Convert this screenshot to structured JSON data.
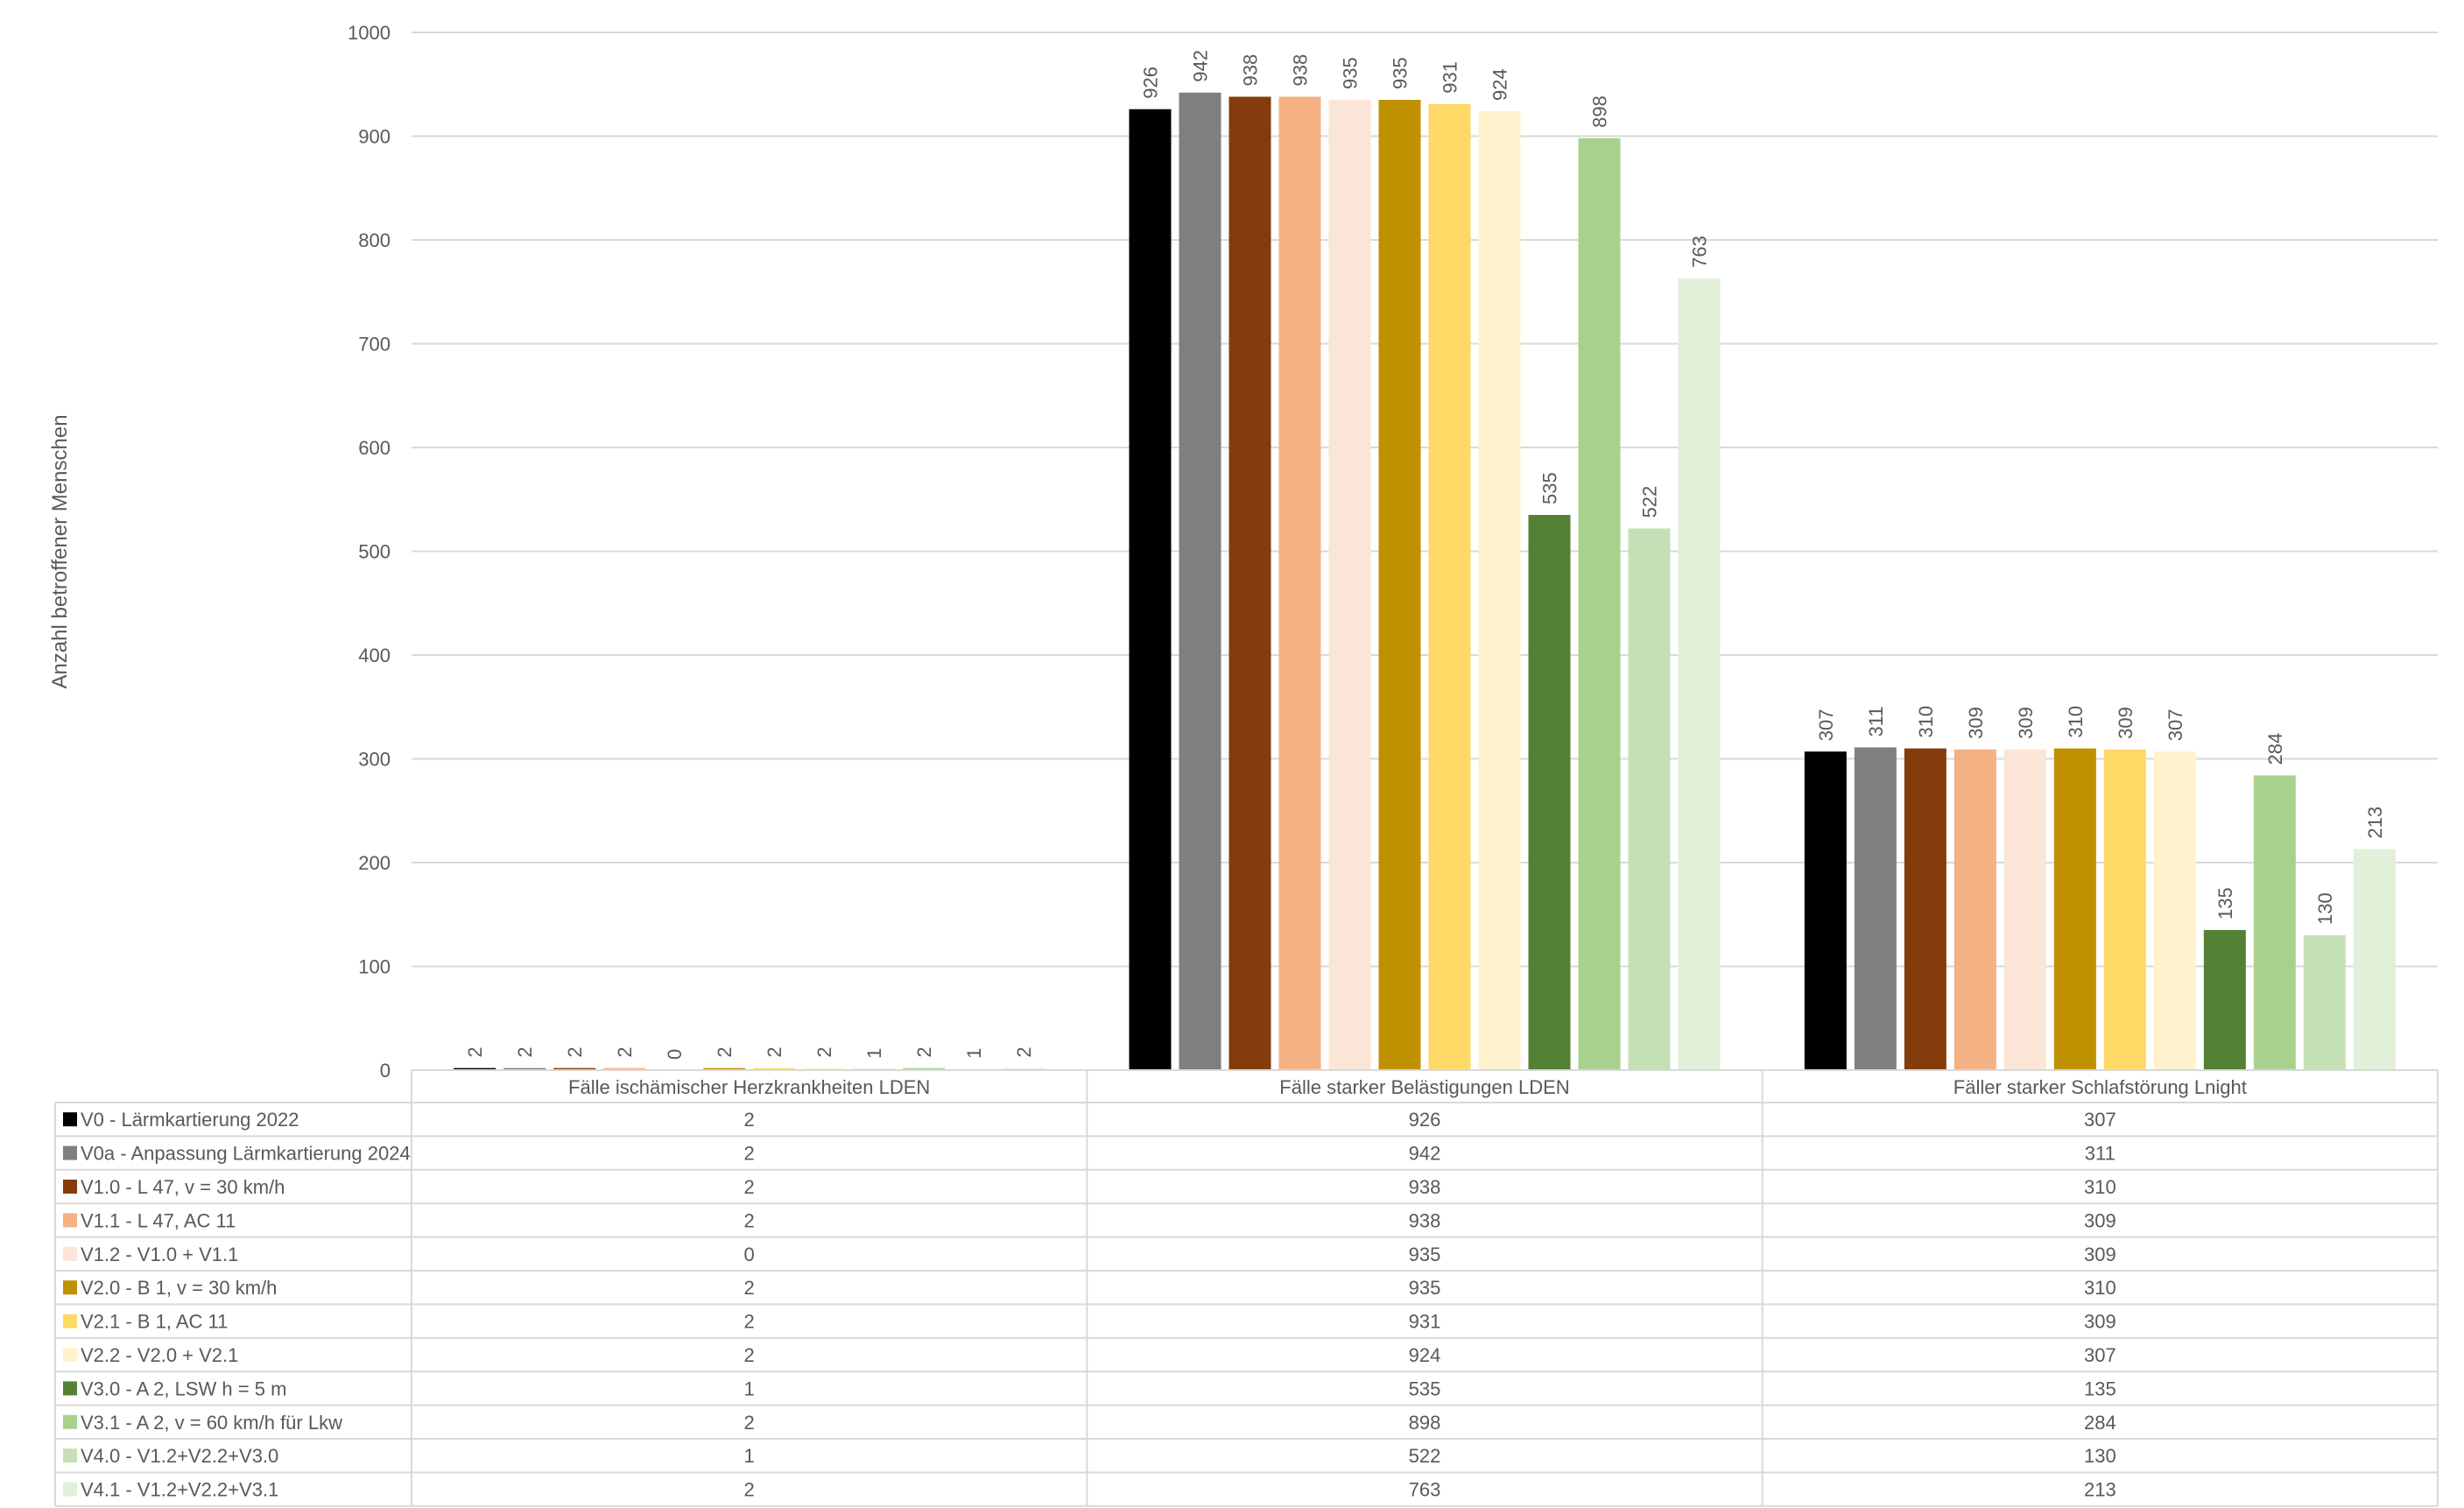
{
  "chart_data": {
    "type": "bar",
    "ylabel": "Anzahl betroffener Menschen",
    "ylim": [
      0,
      1000
    ],
    "yticks": [
      "0",
      "100",
      "200",
      "300",
      "400",
      "500",
      "600",
      "700",
      "800",
      "900",
      "1000"
    ],
    "grid": true,
    "legend": "data-table-below",
    "categories": [
      "Fälle ischämischer Herzkrankheiten LDEN",
      "Fälle starker Belästigungen LDEN",
      "Fäller starker Schlafstörung Lnight"
    ],
    "series": [
      {
        "name": "V0 - Lärmkartierung 2022",
        "color": "#000000",
        "values": [
          2,
          926,
          307
        ]
      },
      {
        "name": "V0a - Anpassung Lärmkartierung 2024",
        "color": "#7f7f7f",
        "values": [
          2,
          942,
          311
        ]
      },
      {
        "name": "V1.0 - L 47, v = 30 km/h",
        "color": "#843c0c",
        "values": [
          2,
          938,
          310
        ]
      },
      {
        "name": "V1.1 - L 47, AC 11",
        "color": "#f4b183",
        "values": [
          2,
          938,
          309
        ]
      },
      {
        "name": "V1.2 - V1.0 + V1.1",
        "color": "#fbe5d6",
        "values": [
          0,
          935,
          309
        ]
      },
      {
        "name": "V2.0 - B 1, v = 30 km/h",
        "color": "#bf9000",
        "values": [
          2,
          935,
          310
        ]
      },
      {
        "name": "V2.1 - B 1, AC 11",
        "color": "#ffd966",
        "values": [
          2,
          931,
          309
        ]
      },
      {
        "name": "V2.2 - V2.0 + V2.1",
        "color": "#fff2cc",
        "values": [
          2,
          924,
          307
        ]
      },
      {
        "name": "V3.0 - A 2, LSW h = 5 m",
        "color": "#548235",
        "values": [
          1,
          535,
          135
        ]
      },
      {
        "name": "V3.1 - A 2, v = 60 km/h für Lkw",
        "color": "#a9d18e",
        "values": [
          2,
          898,
          284
        ]
      },
      {
        "name": "V4.0 - V1.2+V2.2+V3.0",
        "color": "#c5e0b4",
        "values": [
          1,
          522,
          130
        ]
      },
      {
        "name": "V4.1 - V1.2+V2.2+V3.1",
        "color": "#e2f0d9",
        "values": [
          2,
          763,
          213
        ]
      }
    ]
  }
}
